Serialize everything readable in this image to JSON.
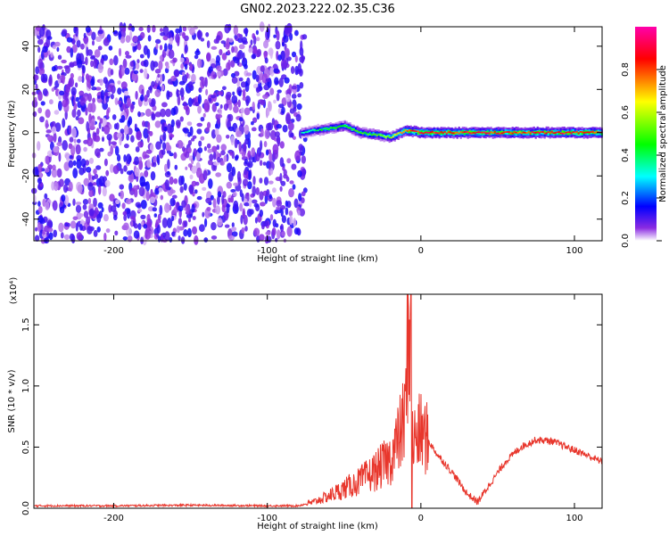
{
  "title": "GN02.2023.222.02.35.C36",
  "colors": {
    "line": "#e8362c",
    "plot_bg": "#ffffff",
    "axis": "#000000"
  },
  "chart_data": [
    {
      "type": "heatmap",
      "xlabel": "Height of straight line (km)",
      "ylabel": "Frequency (Hz)",
      "xlim": [
        -252,
        118
      ],
      "ylim": [
        -50,
        49
      ],
      "xticks": [
        -200,
        -100,
        0,
        100
      ],
      "xtick_labels": [
        "-200",
        "-100",
        "0",
        "100"
      ],
      "yticks": [
        -40,
        -20,
        0,
        20,
        40
      ],
      "ytick_labels": [
        "-40",
        "-20",
        "0",
        "20",
        "40"
      ],
      "colorbar": {
        "label": "Normalized spectral amplitude",
        "range": [
          0,
          1
        ],
        "ticks": [
          0.0,
          0.2,
          0.4,
          0.6,
          0.8
        ],
        "tick_labels": [
          "0.0",
          "0.2",
          "0.4",
          "0.6",
          "0.8"
        ],
        "colormap": [
          "#ffffff",
          "#8a2be2",
          "#0000ff",
          "#00ffff",
          "#00ff00",
          "#ffff00",
          "#ff0000",
          "#ff00aa"
        ]
      },
      "noise_region": {
        "x_from": -252,
        "x_to": -75,
        "typical_amplitude": 0.12
      },
      "signal_band": {
        "x": [
          -78,
          -70,
          -60,
          -50,
          -40,
          -30,
          -20,
          -10,
          0,
          20,
          40,
          60,
          80,
          100,
          118
        ],
        "frequency": [
          0,
          1,
          2,
          3,
          0,
          -1,
          -2,
          1,
          0,
          0,
          0,
          0,
          0,
          0,
          0
        ],
        "amplitude": [
          0.35,
          0.4,
          0.45,
          0.5,
          0.5,
          0.55,
          0.6,
          0.85,
          0.9,
          0.9,
          0.9,
          0.85,
          0.9,
          0.9,
          0.9
        ]
      }
    },
    {
      "type": "line",
      "xlabel": "Height of straight line (km)",
      "ylabel": "SNR (10 * v/v)",
      "y_multiplier": "(x10⁴)",
      "xlim": [
        -252,
        118
      ],
      "ylim": [
        0,
        1.75
      ],
      "xticks": [
        -200,
        -100,
        0,
        100
      ],
      "xtick_labels": [
        "-200",
        "-100",
        "0",
        "100"
      ],
      "yticks": [
        0.0,
        0.5,
        1.0,
        1.5
      ],
      "ytick_labels": [
        "0.0",
        "0.5",
        "1.0",
        "1.5"
      ],
      "series": [
        {
          "x": [
            -252,
            -200,
            -150,
            -100,
            -80,
            -70,
            -60,
            -50,
            -40,
            -30,
            -20,
            -15,
            -10,
            -8,
            -5,
            0,
            5,
            10,
            20,
            30,
            37,
            45,
            55,
            65,
            75,
            85,
            95,
            105,
            118
          ],
          "y": [
            0.02,
            0.02,
            0.025,
            0.02,
            0.02,
            0.05,
            0.1,
            0.16,
            0.22,
            0.3,
            0.4,
            0.55,
            0.75,
            1.75,
            0.55,
            0.62,
            0.55,
            0.45,
            0.3,
            0.12,
            0.05,
            0.2,
            0.38,
            0.5,
            0.56,
            0.55,
            0.5,
            0.45,
            0.38
          ]
        }
      ]
    }
  ]
}
